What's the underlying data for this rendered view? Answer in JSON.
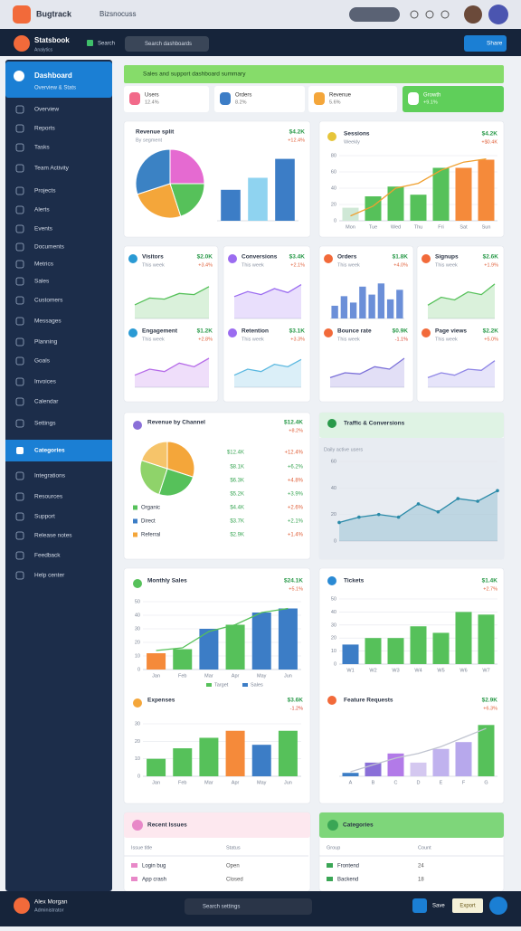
{
  "browser": {
    "tab": "Bugtrack",
    "tab2": "Bizsnocuss"
  },
  "app": {
    "title": "Statsbook",
    "subtitle": "Analytics",
    "badge": "Search",
    "search": "Search dashboards",
    "share": "Share"
  },
  "sidebar": {
    "active": {
      "title": "Dashboard",
      "subtitle": "Overview & Stats"
    },
    "items": [
      "Overview",
      "Reports",
      "Tasks",
      "Team Activity",
      "Projects",
      "Alerts",
      "Events",
      "Documents",
      "Metrics",
      "Sales",
      "Customers",
      "Messages",
      "Planning",
      "Goals",
      "Invoices",
      "Calendar",
      "Settings"
    ],
    "highlight": "Categories",
    "items2": [
      "Integrations",
      "Resources",
      "Support",
      "Release notes",
      "Feedback",
      "Help center"
    ]
  },
  "banner": "Sales and support dashboard summary",
  "cards": [
    {
      "label": "Users",
      "value": "12.4%"
    },
    {
      "label": "Orders",
      "value": "8.2%"
    },
    {
      "label": "Revenue",
      "value": "5.6%"
    },
    {
      "label": "Growth",
      "value": "+9.1%"
    }
  ],
  "charts": [
    {
      "type": "pie",
      "title": "Revenue split",
      "subtitle": "By segment",
      "value": "$4.2K",
      "change": "+12.4%",
      "values": [
        25,
        20,
        25,
        30
      ],
      "colors": [
        "#e56ad1",
        "#56c15a",
        "#f4a63a",
        "#3b82c4"
      ]
    },
    {
      "type": "bar",
      "values": [
        36,
        50,
        72
      ],
      "colors": [
        "#3c7dc6",
        "#8fd3f0",
        "#3c7dc6"
      ],
      "ylim": [
        0,
        80
      ]
    },
    {
      "type": "bar",
      "title": "Sessions",
      "subtitle": "Weekly",
      "value": "$4.2K",
      "change": "+$0.4K",
      "categories": [
        "Mon",
        "Tue",
        "Wed",
        "Thu",
        "Fri",
        "Sat",
        "Sun"
      ],
      "values": [
        16,
        30,
        42,
        32,
        65,
        65,
        75
      ],
      "colors": [
        "#cfe8d6",
        "#56c15a",
        "#56c15a",
        "#56c15a",
        "#56c15a",
        "#f58a3a",
        "#f58a3a"
      ],
      "line": [
        6,
        18,
        40,
        46,
        62,
        72,
        76
      ],
      "line_color": "#f0a030",
      "ylim": [
        0,
        80
      ],
      "yticks": [
        0,
        20,
        40,
        60,
        80
      ]
    },
    {
      "type": "area",
      "title": "Visitors",
      "subtitle": "This week",
      "value": "$2.0K",
      "change": "+3.4%",
      "values": [
        12,
        18,
        17,
        22,
        21,
        28
      ],
      "color": "#56c15a",
      "ylim": [
        0,
        35
      ]
    },
    {
      "type": "area",
      "title": "Conversions",
      "subtitle": "This week",
      "value": "$3.4K",
      "change": "+2.1%",
      "values": [
        22,
        27,
        24,
        30,
        26,
        34
      ],
      "color": "#9b6cf0",
      "ylim": [
        0,
        40
      ]
    },
    {
      "type": "bar",
      "title": "Orders",
      "subtitle": "This week",
      "value": "$1.8K",
      "change": "+4.0%",
      "values": [
        8,
        14,
        10,
        20,
        15,
        22,
        12,
        18
      ],
      "color": "#6b8fd8",
      "ylim": [
        0,
        25
      ]
    },
    {
      "type": "area",
      "title": "Signups",
      "subtitle": "This week",
      "value": "$2.6K",
      "change": "+1.9%",
      "values": [
        10,
        16,
        14,
        20,
        18,
        26
      ],
      "color": "#56c15a",
      "ylim": [
        0,
        30
      ]
    },
    {
      "type": "area",
      "title": "Engagement",
      "subtitle": "This week",
      "value": "$1.2K",
      "change": "+2.8%",
      "values": [
        10,
        15,
        13,
        20,
        17,
        24
      ],
      "color": "#b56be8",
      "ylim": [
        0,
        30
      ]
    },
    {
      "type": "area",
      "title": "Retention",
      "subtitle": "This week",
      "value": "$3.1K",
      "change": "+3.3%",
      "values": [
        10,
        15,
        13,
        19,
        17,
        23
      ],
      "color": "#5bb8e0",
      "ylim": [
        0,
        30
      ]
    },
    {
      "type": "area",
      "title": "Bounce rate",
      "subtitle": "This week",
      "value": "$0.9K",
      "change": "-1.1%",
      "values": [
        8,
        12,
        11,
        17,
        15,
        24
      ],
      "color": "#7a6fd8",
      "ylim": [
        0,
        30
      ]
    },
    {
      "type": "area",
      "title": "Page views",
      "subtitle": "This week",
      "value": "$2.2K",
      "change": "+5.0%",
      "values": [
        8,
        12,
        10,
        15,
        14,
        22
      ],
      "color": "#8f86e6",
      "ylim": [
        0,
        30
      ]
    },
    {
      "type": "pie",
      "title": "Revenue by Channel",
      "value": "$12.4K",
      "change": "+8.2%",
      "values": [
        30,
        25,
        25,
        20
      ],
      "colors": [
        "#f4a63a",
        "#56c15a",
        "#8fd36a",
        "#f6c46a"
      ]
    },
    {
      "type": "area",
      "title": "Traffic & Conversions",
      "subtitle": "Daily active users",
      "values": [
        14,
        18,
        20,
        18,
        28,
        22,
        32,
        30,
        38
      ],
      "color": "#2a8aa8",
      "ylim": [
        0,
        60
      ],
      "yticks": [
        0,
        20,
        40,
        60
      ]
    },
    {
      "type": "bar",
      "title": "Monthly Sales",
      "value": "$24.1K",
      "change": "+5.1%",
      "categories": [
        "Jan",
        "Feb",
        "Mar",
        "Apr",
        "May",
        "Jun"
      ],
      "values": [
        12,
        15,
        30,
        33,
        42,
        45
      ],
      "colors": [
        "#f58a3a",
        "#56c15a",
        "#3c7dc6",
        "#56c15a",
        "#3c7dc6",
        "#3c7dc6"
      ],
      "line": [
        14,
        16,
        28,
        33,
        42,
        45
      ],
      "line_color": "#56c15a",
      "ylim": [
        0,
        50
      ],
      "yticks": [
        0,
        10,
        20,
        30,
        40,
        50
      ],
      "legend": [
        "Target",
        "Sales"
      ]
    },
    {
      "type": "bar",
      "title": "Tickets",
      "value": "$1.4K",
      "change": "+2.7%",
      "categories": [
        "W1",
        "W2",
        "W3",
        "W4",
        "W5",
        "W6",
        "W7"
      ],
      "values": [
        15,
        20,
        20,
        29,
        24,
        40,
        38
      ],
      "colors": [
        "#3c7dc6",
        "#56c15a",
        "#56c15a",
        "#56c15a",
        "#56c15a",
        "#56c15a",
        "#56c15a"
      ],
      "ylim": [
        0,
        50
      ],
      "yticks": [
        0,
        10,
        20,
        30,
        40,
        50
      ]
    },
    {
      "type": "bar",
      "title": "Expenses",
      "value": "$3.6K",
      "change": "-1.2%",
      "categories": [
        "Jan",
        "Feb",
        "Mar",
        "Apr",
        "May",
        "Jun"
      ],
      "values": [
        10,
        16,
        22,
        26,
        18,
        26
      ],
      "colors": [
        "#56c15a",
        "#56c15a",
        "#56c15a",
        "#f58a3a",
        "#3c7dc6",
        "#56c15a"
      ],
      "ylim": [
        0,
        30
      ],
      "yticks": [
        0,
        10,
        20,
        30
      ]
    },
    {
      "type": "bar",
      "title": "Feature Requests",
      "value": "$2.9K",
      "change": "+6.3%",
      "categories": [
        "A",
        "B",
        "C",
        "D",
        "E",
        "F",
        "G"
      ],
      "values": [
        3,
        12,
        20,
        12,
        24,
        30,
        45
      ],
      "colors": [
        "#3c7dc6",
        "#8a6fd8",
        "#b27ae8",
        "#d4c8f0",
        "#c0b2ee",
        "#b7a8ec",
        "#56c15a"
      ],
      "line": [
        4,
        10,
        16,
        20,
        26,
        34,
        42
      ],
      "line_color": "#c0c4d0",
      "ylim": [
        0,
        50
      ]
    }
  ],
  "channel_list": {
    "rows": [
      {
        "a": "$12.4K",
        "b": "+12.4%"
      },
      {
        "a": "$8.1K",
        "b": "+6.2%"
      },
      {
        "a": "$6.3K",
        "b": "+4.8%"
      },
      {
        "a": "$5.2K",
        "b": "+3.9%"
      },
      {
        "a": "$4.4K",
        "b": "+2.6%"
      },
      {
        "a": "$3.7K",
        "b": "+2.1%"
      },
      {
        "a": "$2.9K",
        "b": "+1.4%"
      }
    ],
    "legend": [
      {
        "label": "Organic",
        "color": "#56c15a"
      },
      {
        "label": "Direct",
        "color": "#3c7dc6"
      },
      {
        "label": "Referral",
        "color": "#f4a63a"
      }
    ]
  },
  "issues": {
    "title": "Recent Issues",
    "columns": [
      "Issue title",
      "Status"
    ],
    "rows": [
      [
        "Login bug",
        "Open"
      ],
      [
        "App crash",
        "Closed"
      ]
    ]
  },
  "groups": {
    "title": "Categories",
    "columns": [
      "Group",
      "Count"
    ],
    "rows": [
      [
        "Frontend",
        "24"
      ],
      [
        "Backend",
        "18"
      ]
    ]
  },
  "footer": {
    "name": "Alex Morgan",
    "role": "Administrator",
    "search": "Search settings",
    "save": "Save",
    "export": "Export"
  }
}
